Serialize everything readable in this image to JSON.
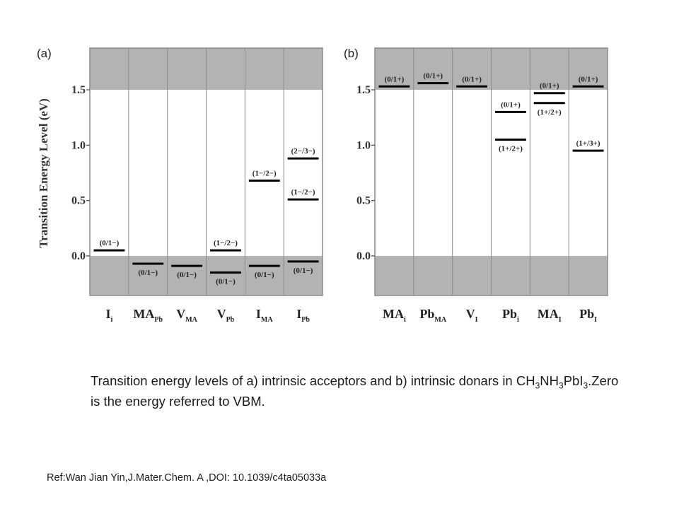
{
  "chart_data": [
    {
      "panel_label": "(a)",
      "type": "energy-level",
      "ylabel": "Transition Energy Level (eV)",
      "yticks": [
        "0.0",
        "0.5",
        "1.0",
        "1.5"
      ],
      "ylim": [
        -0.35,
        1.85
      ],
      "band_gap": [
        0.0,
        1.5
      ],
      "categories": [
        {
          "main": "I",
          "sub": "i"
        },
        {
          "main": "MA",
          "sub": "Pb"
        },
        {
          "main": "V",
          "sub": "MA"
        },
        {
          "main": "V",
          "sub": "Pb"
        },
        {
          "main": "I",
          "sub": "MA"
        },
        {
          "main": "I",
          "sub": "Pb"
        }
      ],
      "levels": [
        {
          "category": 0,
          "energy": 0.05,
          "label": "(0/1−)",
          "label_pos": "above"
        },
        {
          "category": 1,
          "energy": -0.07,
          "label": "(0/1−)",
          "label_pos": "below"
        },
        {
          "category": 2,
          "energy": -0.09,
          "label": "(0/1−)",
          "label_pos": "below"
        },
        {
          "category": 3,
          "energy": 0.05,
          "label": "(1−/2−)",
          "label_pos": "above"
        },
        {
          "category": 3,
          "energy": -0.15,
          "label": "(0/1−)",
          "label_pos": "below"
        },
        {
          "category": 4,
          "energy": 0.68,
          "label": "(1−/2−)",
          "label_pos": "above"
        },
        {
          "category": 4,
          "energy": -0.09,
          "label": "(0/1−)",
          "label_pos": "below"
        },
        {
          "category": 5,
          "energy": 0.88,
          "label": "(2−/3−)",
          "label_pos": "above"
        },
        {
          "category": 5,
          "energy": 0.51,
          "label": "(1−/2−)",
          "label_pos": "above"
        },
        {
          "category": 5,
          "energy": -0.05,
          "label": "(0/1−)",
          "label_pos": "below"
        }
      ]
    },
    {
      "panel_label": "(b)",
      "type": "energy-level",
      "ylabel": "",
      "yticks": [
        "0.0",
        "0.5",
        "1.0",
        "1.5"
      ],
      "ylim": [
        -0.35,
        1.85
      ],
      "band_gap": [
        0.0,
        1.5
      ],
      "categories": [
        {
          "main": "MA",
          "sub": "i"
        },
        {
          "main": "Pb",
          "sub": "MA"
        },
        {
          "main": "V",
          "sub": "I"
        },
        {
          "main": "Pb",
          "sub": "i"
        },
        {
          "main": "MA",
          "sub": "I"
        },
        {
          "main": "Pb",
          "sub": "I"
        }
      ],
      "levels": [
        {
          "category": 0,
          "energy": 1.53,
          "label": "(0/1+)",
          "label_pos": "above"
        },
        {
          "category": 1,
          "energy": 1.56,
          "label": "(0/1+)",
          "label_pos": "above"
        },
        {
          "category": 2,
          "energy": 1.53,
          "label": "(0/1+)",
          "label_pos": "above"
        },
        {
          "category": 3,
          "energy": 1.3,
          "label": "(0/1+)",
          "label_pos": "above"
        },
        {
          "category": 3,
          "energy": 1.05,
          "label": "(1+/2+)",
          "label_pos": "below"
        },
        {
          "category": 4,
          "energy": 1.47,
          "label": "(0/1+)",
          "label_pos": "above"
        },
        {
          "category": 4,
          "energy": 1.38,
          "label": "(1+/2+)",
          "label_pos": "below"
        },
        {
          "category": 5,
          "energy": 1.53,
          "label": "(0/1+)",
          "label_pos": "above"
        },
        {
          "category": 5,
          "energy": 0.95,
          "label": "(1+/3+)",
          "label_pos": "above"
        }
      ]
    }
  ],
  "caption": {
    "part1": "Transition energy levels of  a) intrinsic acceptors and b) intrinsic donars in CH",
    "sub1": "3",
    "part2": "NH",
    "sub2": "3",
    "part3": "PbI",
    "sub3": "3",
    "part4": ".Zero is the energy referred to VBM."
  },
  "reference": "Ref:Wan Jian Yin,J.Mater.Chem. A ,DOI: 10.1039/c4ta05033a",
  "colors": {
    "band": "#b3b3b3",
    "gap": "#ffffff",
    "frame": "#8c8c8c",
    "level": "#000000"
  }
}
